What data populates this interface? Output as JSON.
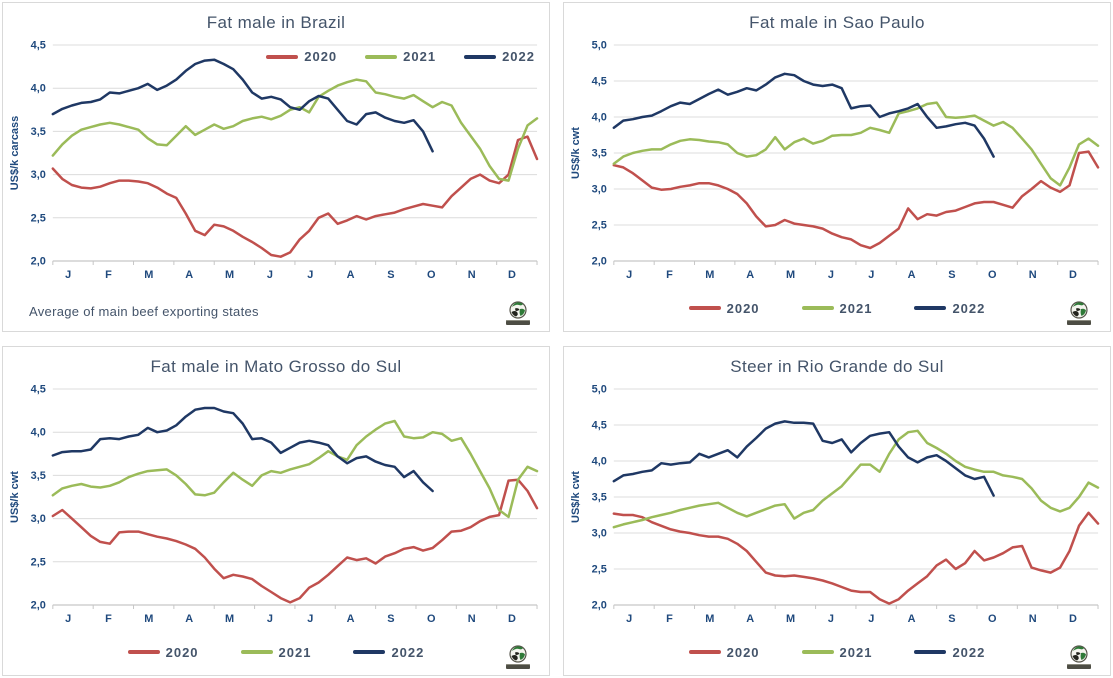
{
  "colors": {
    "series_2020": "#C0504D",
    "series_2021": "#9BBB59",
    "series_2022": "#1F3864",
    "grid": "#DCDCDC",
    "axis": "#C6C6C6",
    "tick_label": "#1F497D",
    "title_text": "#44546A",
    "panel_border": "#D9D9D9"
  },
  "chart_data": [
    {
      "type": "line",
      "title": "Fat male in Brazil",
      "ylabel": "US$/k carcass",
      "ylim": [
        2.0,
        4.5
      ],
      "ytick_step": 0.5,
      "ytick_labels": [
        "2,0",
        "2,5",
        "3,0",
        "3,5",
        "4,0",
        "4,5"
      ],
      "x_months": [
        "J",
        "F",
        "M",
        "A",
        "M",
        "J",
        "J",
        "A",
        "S",
        "O",
        "N",
        "D"
      ],
      "weeks_per_year": 52,
      "legend_position": "top-inside",
      "footer_note": "Average  of main beef exporting states",
      "series": [
        {
          "name": "2020",
          "color_key": "series_2020",
          "values": [
            3.07,
            2.95,
            2.88,
            2.85,
            2.84,
            2.86,
            2.9,
            2.93,
            2.93,
            2.92,
            2.9,
            2.85,
            2.78,
            2.73,
            2.55,
            2.35,
            2.3,
            2.42,
            2.4,
            2.35,
            2.28,
            2.22,
            2.15,
            2.07,
            2.05,
            2.1,
            2.25,
            2.35,
            2.5,
            2.55,
            2.43,
            2.47,
            2.52,
            2.48,
            2.52,
            2.54,
            2.56,
            2.6,
            2.63,
            2.66,
            2.64,
            2.62,
            2.75,
            2.85,
            2.95,
            3.0,
            2.93,
            2.9,
            3.0,
            3.4,
            3.44,
            3.18
          ]
        },
        {
          "name": "2021",
          "color_key": "series_2021",
          "values": [
            3.22,
            3.35,
            3.45,
            3.52,
            3.55,
            3.58,
            3.6,
            3.58,
            3.55,
            3.52,
            3.42,
            3.35,
            3.34,
            3.45,
            3.56,
            3.46,
            3.52,
            3.58,
            3.53,
            3.56,
            3.62,
            3.65,
            3.67,
            3.64,
            3.68,
            3.75,
            3.78,
            3.72,
            3.9,
            3.97,
            4.03,
            4.07,
            4.1,
            4.08,
            3.95,
            3.93,
            3.9,
            3.88,
            3.92,
            3.85,
            3.78,
            3.84,
            3.8,
            3.6,
            3.45,
            3.3,
            3.1,
            2.95,
            2.93,
            3.3,
            3.57,
            3.65
          ]
        },
        {
          "name": "2022",
          "color_key": "series_2022",
          "values": [
            3.7,
            3.76,
            3.8,
            3.83,
            3.84,
            3.87,
            3.95,
            3.94,
            3.97,
            4.0,
            4.05,
            3.98,
            4.03,
            4.1,
            4.2,
            4.28,
            4.32,
            4.33,
            4.28,
            4.22,
            4.1,
            3.95,
            3.88,
            3.9,
            3.87,
            3.78,
            3.75,
            3.85,
            3.91,
            3.88,
            3.75,
            3.62,
            3.58,
            3.7,
            3.72,
            3.66,
            3.62,
            3.6,
            3.63,
            3.5,
            3.27
          ]
        }
      ]
    },
    {
      "type": "line",
      "title": "Fat male in Sao Paulo",
      "ylabel": "US$/k cwt",
      "ylim": [
        2.0,
        5.0
      ],
      "ytick_step": 0.5,
      "ytick_labels": [
        "2,0",
        "2,5",
        "3,0",
        "3,5",
        "4,0",
        "4,5",
        "5,0"
      ],
      "x_months": [
        "J",
        "F",
        "M",
        "A",
        "M",
        "J",
        "J",
        "A",
        "S",
        "O",
        "N",
        "D"
      ],
      "weeks_per_year": 52,
      "legend_position": "bottom",
      "series": [
        {
          "name": "2020",
          "color_key": "series_2020",
          "values": [
            3.33,
            3.3,
            3.22,
            3.12,
            3.02,
            2.99,
            3.0,
            3.03,
            3.05,
            3.08,
            3.08,
            3.05,
            3.0,
            2.93,
            2.8,
            2.62,
            2.48,
            2.5,
            2.57,
            2.52,
            2.5,
            2.48,
            2.45,
            2.38,
            2.33,
            2.3,
            2.22,
            2.18,
            2.25,
            2.35,
            2.45,
            2.73,
            2.58,
            2.65,
            2.63,
            2.68,
            2.7,
            2.75,
            2.8,
            2.82,
            2.82,
            2.78,
            2.74,
            2.9,
            3.0,
            3.11,
            3.02,
            2.96,
            3.05,
            3.5,
            3.52,
            3.3
          ]
        },
        {
          "name": "2021",
          "color_key": "series_2021",
          "values": [
            3.35,
            3.45,
            3.5,
            3.53,
            3.55,
            3.55,
            3.62,
            3.67,
            3.69,
            3.68,
            3.66,
            3.65,
            3.62,
            3.5,
            3.45,
            3.47,
            3.55,
            3.72,
            3.55,
            3.65,
            3.7,
            3.63,
            3.67,
            3.74,
            3.75,
            3.75,
            3.78,
            3.85,
            3.82,
            3.78,
            4.05,
            4.08,
            4.12,
            4.18,
            4.2,
            4.0,
            3.99,
            4.0,
            4.02,
            3.95,
            3.88,
            3.93,
            3.85,
            3.7,
            3.55,
            3.35,
            3.15,
            3.05,
            3.3,
            3.62,
            3.7,
            3.6
          ]
        },
        {
          "name": "2022",
          "color_key": "series_2022",
          "values": [
            3.85,
            3.95,
            3.97,
            4.0,
            4.02,
            4.08,
            4.15,
            4.2,
            4.18,
            4.25,
            4.32,
            4.38,
            4.31,
            4.35,
            4.4,
            4.37,
            4.45,
            4.55,
            4.6,
            4.58,
            4.5,
            4.45,
            4.43,
            4.45,
            4.4,
            4.12,
            4.15,
            4.16,
            4.0,
            4.05,
            4.08,
            4.12,
            4.18,
            4.0,
            3.85,
            3.87,
            3.9,
            3.92,
            3.88,
            3.7,
            3.45
          ]
        }
      ]
    },
    {
      "type": "line",
      "title": "Fat male in Mato Grosso do Sul",
      "ylabel": "US$/k  cwt",
      "ylim": [
        2.0,
        4.5
      ],
      "ytick_step": 0.5,
      "ytick_labels": [
        "2,0",
        "2,5",
        "3,0",
        "3,5",
        "4,0",
        "4,5"
      ],
      "x_months": [
        "J",
        "F",
        "M",
        "A",
        "M",
        "J",
        "J",
        "A",
        "S",
        "O",
        "N",
        "D"
      ],
      "weeks_per_year": 52,
      "legend_position": "bottom",
      "series": [
        {
          "name": "2020",
          "color_key": "series_2020",
          "values": [
            3.03,
            3.1,
            3.0,
            2.9,
            2.8,
            2.73,
            2.71,
            2.84,
            2.85,
            2.85,
            2.82,
            2.79,
            2.77,
            2.74,
            2.7,
            2.65,
            2.55,
            2.42,
            2.31,
            2.35,
            2.33,
            2.3,
            2.22,
            2.15,
            2.08,
            2.03,
            2.08,
            2.2,
            2.26,
            2.35,
            2.45,
            2.55,
            2.52,
            2.54,
            2.48,
            2.56,
            2.6,
            2.65,
            2.67,
            2.63,
            2.66,
            2.75,
            2.85,
            2.86,
            2.9,
            2.97,
            3.02,
            3.04,
            3.44,
            3.45,
            3.32,
            3.12
          ]
        },
        {
          "name": "2021",
          "color_key": "series_2021",
          "values": [
            3.27,
            3.35,
            3.38,
            3.4,
            3.37,
            3.36,
            3.38,
            3.42,
            3.48,
            3.52,
            3.55,
            3.56,
            3.57,
            3.5,
            3.4,
            3.28,
            3.27,
            3.3,
            3.42,
            3.53,
            3.45,
            3.38,
            3.5,
            3.55,
            3.53,
            3.57,
            3.6,
            3.63,
            3.7,
            3.78,
            3.72,
            3.68,
            3.85,
            3.95,
            4.03,
            4.1,
            4.13,
            3.95,
            3.93,
            3.94,
            4.0,
            3.98,
            3.9,
            3.93,
            3.75,
            3.55,
            3.35,
            3.1,
            3.02,
            3.45,
            3.6,
            3.55
          ]
        },
        {
          "name": "2022",
          "color_key": "series_2022",
          "values": [
            3.73,
            3.77,
            3.78,
            3.78,
            3.8,
            3.92,
            3.93,
            3.92,
            3.95,
            3.97,
            4.05,
            4.0,
            4.02,
            4.08,
            4.18,
            4.26,
            4.28,
            4.28,
            4.24,
            4.22,
            4.1,
            3.92,
            3.93,
            3.88,
            3.76,
            3.82,
            3.88,
            3.9,
            3.88,
            3.85,
            3.72,
            3.64,
            3.7,
            3.72,
            3.66,
            3.62,
            3.6,
            3.48,
            3.55,
            3.42,
            3.32
          ]
        }
      ]
    },
    {
      "type": "line",
      "title": "Steer  in Rio Grande do Sul",
      "ylabel": "US$/k  cwt",
      "ylim": [
        2.0,
        5.0
      ],
      "ytick_step": 0.5,
      "ytick_labels": [
        "2,0",
        "2,5",
        "3,0",
        "3,5",
        "4,0",
        "4,5",
        "5,0"
      ],
      "x_months": [
        "J",
        "F",
        "M",
        "A",
        "M",
        "J",
        "J",
        "A",
        "S",
        "O",
        "N",
        "D"
      ],
      "weeks_per_year": 52,
      "legend_position": "bottom",
      "series": [
        {
          "name": "2020",
          "color_key": "series_2020",
          "values": [
            3.27,
            3.25,
            3.25,
            3.22,
            3.15,
            3.1,
            3.05,
            3.02,
            3.0,
            2.97,
            2.95,
            2.95,
            2.92,
            2.85,
            2.75,
            2.6,
            2.45,
            2.41,
            2.4,
            2.41,
            2.39,
            2.37,
            2.34,
            2.3,
            2.25,
            2.2,
            2.18,
            2.18,
            2.08,
            2.02,
            2.08,
            2.2,
            2.3,
            2.4,
            2.55,
            2.63,
            2.5,
            2.58,
            2.75,
            2.62,
            2.66,
            2.72,
            2.8,
            2.82,
            2.52,
            2.48,
            2.45,
            2.52,
            2.75,
            3.1,
            3.28,
            3.13
          ]
        },
        {
          "name": "2021",
          "color_key": "series_2021",
          "values": [
            3.08,
            3.12,
            3.15,
            3.18,
            3.22,
            3.25,
            3.28,
            3.32,
            3.35,
            3.38,
            3.4,
            3.42,
            3.35,
            3.28,
            3.23,
            3.28,
            3.33,
            3.38,
            3.4,
            3.2,
            3.28,
            3.32,
            3.45,
            3.55,
            3.65,
            3.8,
            3.95,
            3.95,
            3.85,
            4.1,
            4.3,
            4.4,
            4.42,
            4.25,
            4.18,
            4.1,
            4.0,
            3.92,
            3.88,
            3.85,
            3.85,
            3.8,
            3.78,
            3.75,
            3.62,
            3.45,
            3.35,
            3.3,
            3.35,
            3.5,
            3.7,
            3.63
          ]
        },
        {
          "name": "2022",
          "color_key": "series_2022",
          "values": [
            3.72,
            3.8,
            3.82,
            3.85,
            3.87,
            3.97,
            3.95,
            3.97,
            3.98,
            4.1,
            4.05,
            4.1,
            4.15,
            4.05,
            4.2,
            4.32,
            4.45,
            4.52,
            4.55,
            4.53,
            4.53,
            4.52,
            4.28,
            4.25,
            4.3,
            4.12,
            4.25,
            4.35,
            4.38,
            4.4,
            4.2,
            4.05,
            3.98,
            4.05,
            4.08,
            4.0,
            3.9,
            3.8,
            3.75,
            3.78,
            3.52
          ]
        }
      ]
    }
  ]
}
